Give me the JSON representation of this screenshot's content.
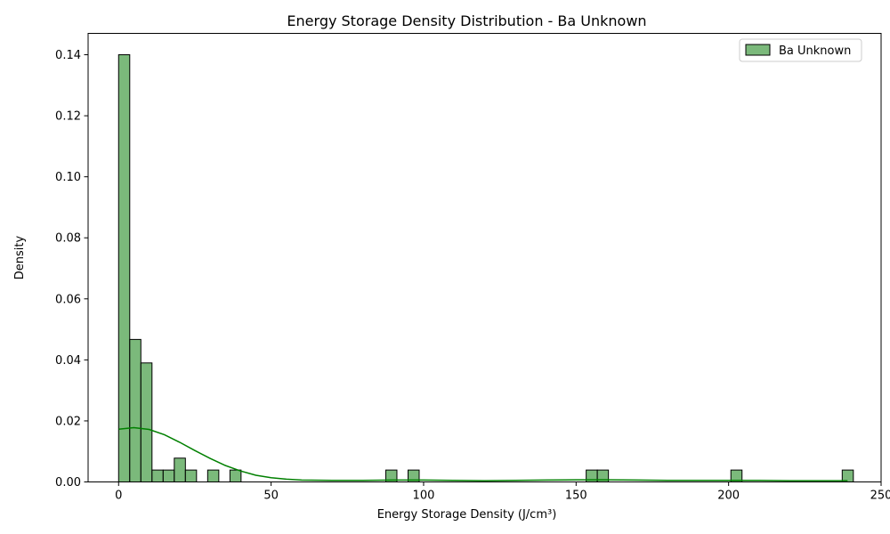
{
  "chart_data": {
    "type": "bar",
    "subtype": "histogram-with-kde",
    "title": "Energy Storage Density Distribution - Ba Unknown",
    "xlabel": "Energy Storage Density (J/cm³)",
    "ylabel": "Density",
    "xlim": [
      -10,
      250
    ],
    "ylim": [
      0,
      0.147
    ],
    "xticks": [
      0,
      50,
      100,
      150,
      200,
      250
    ],
    "xtick_labels": [
      "0",
      "50",
      "100",
      "150",
      "200",
      "250"
    ],
    "yticks": [
      0,
      0.02,
      0.04,
      0.06,
      0.08,
      0.1,
      0.12,
      0.14
    ],
    "ytick_labels": [
      "0.00",
      "0.02",
      "0.04",
      "0.06",
      "0.08",
      "0.10",
      "0.12",
      "0.14"
    ],
    "grid": false,
    "legend": {
      "position": "top-right",
      "entries": [
        "Ba Unknown"
      ]
    },
    "series": [
      {
        "name": "Ba Unknown",
        "color": "#5aa85a",
        "edge_color": "#000000",
        "bin_width": 3.65,
        "bins": [
          {
            "x0": 0.0,
            "density": 0.14
          },
          {
            "x0": 3.65,
            "density": 0.0467
          },
          {
            "x0": 7.3,
            "density": 0.039
          },
          {
            "x0": 10.95,
            "density": 0.0039
          },
          {
            "x0": 14.6,
            "density": 0.0039
          },
          {
            "x0": 18.25,
            "density": 0.0078
          },
          {
            "x0": 21.9,
            "density": 0.0039
          },
          {
            "x0": 29.2,
            "density": 0.0039
          },
          {
            "x0": 36.5,
            "density": 0.0039
          },
          {
            "x0": 87.6,
            "density": 0.0039
          },
          {
            "x0": 94.9,
            "density": 0.0039
          },
          {
            "x0": 153.3,
            "density": 0.0039
          },
          {
            "x0": 156.95,
            "density": 0.0039
          },
          {
            "x0": 200.75,
            "density": 0.0039
          },
          {
            "x0": 237.25,
            "density": 0.0039
          }
        ],
        "kde": {
          "color": "#008000",
          "x": [
            0,
            5,
            10,
            15,
            20,
            25,
            30,
            35,
            40,
            45,
            50,
            55,
            60,
            70,
            80,
            90,
            100,
            110,
            120,
            130,
            140,
            150,
            160,
            170,
            180,
            190,
            200,
            210,
            220,
            230,
            239
          ],
          "y": [
            0.0173,
            0.0178,
            0.0172,
            0.0155,
            0.013,
            0.0103,
            0.0077,
            0.0054,
            0.0036,
            0.0022,
            0.0014,
            0.0009,
            0.0006,
            0.0005,
            0.0005,
            0.0006,
            0.0006,
            0.0005,
            0.0004,
            0.0005,
            0.0006,
            0.0007,
            0.0007,
            0.0006,
            0.0005,
            0.0005,
            0.0005,
            0.0005,
            0.0004,
            0.0004,
            0.0004
          ]
        }
      }
    ]
  }
}
